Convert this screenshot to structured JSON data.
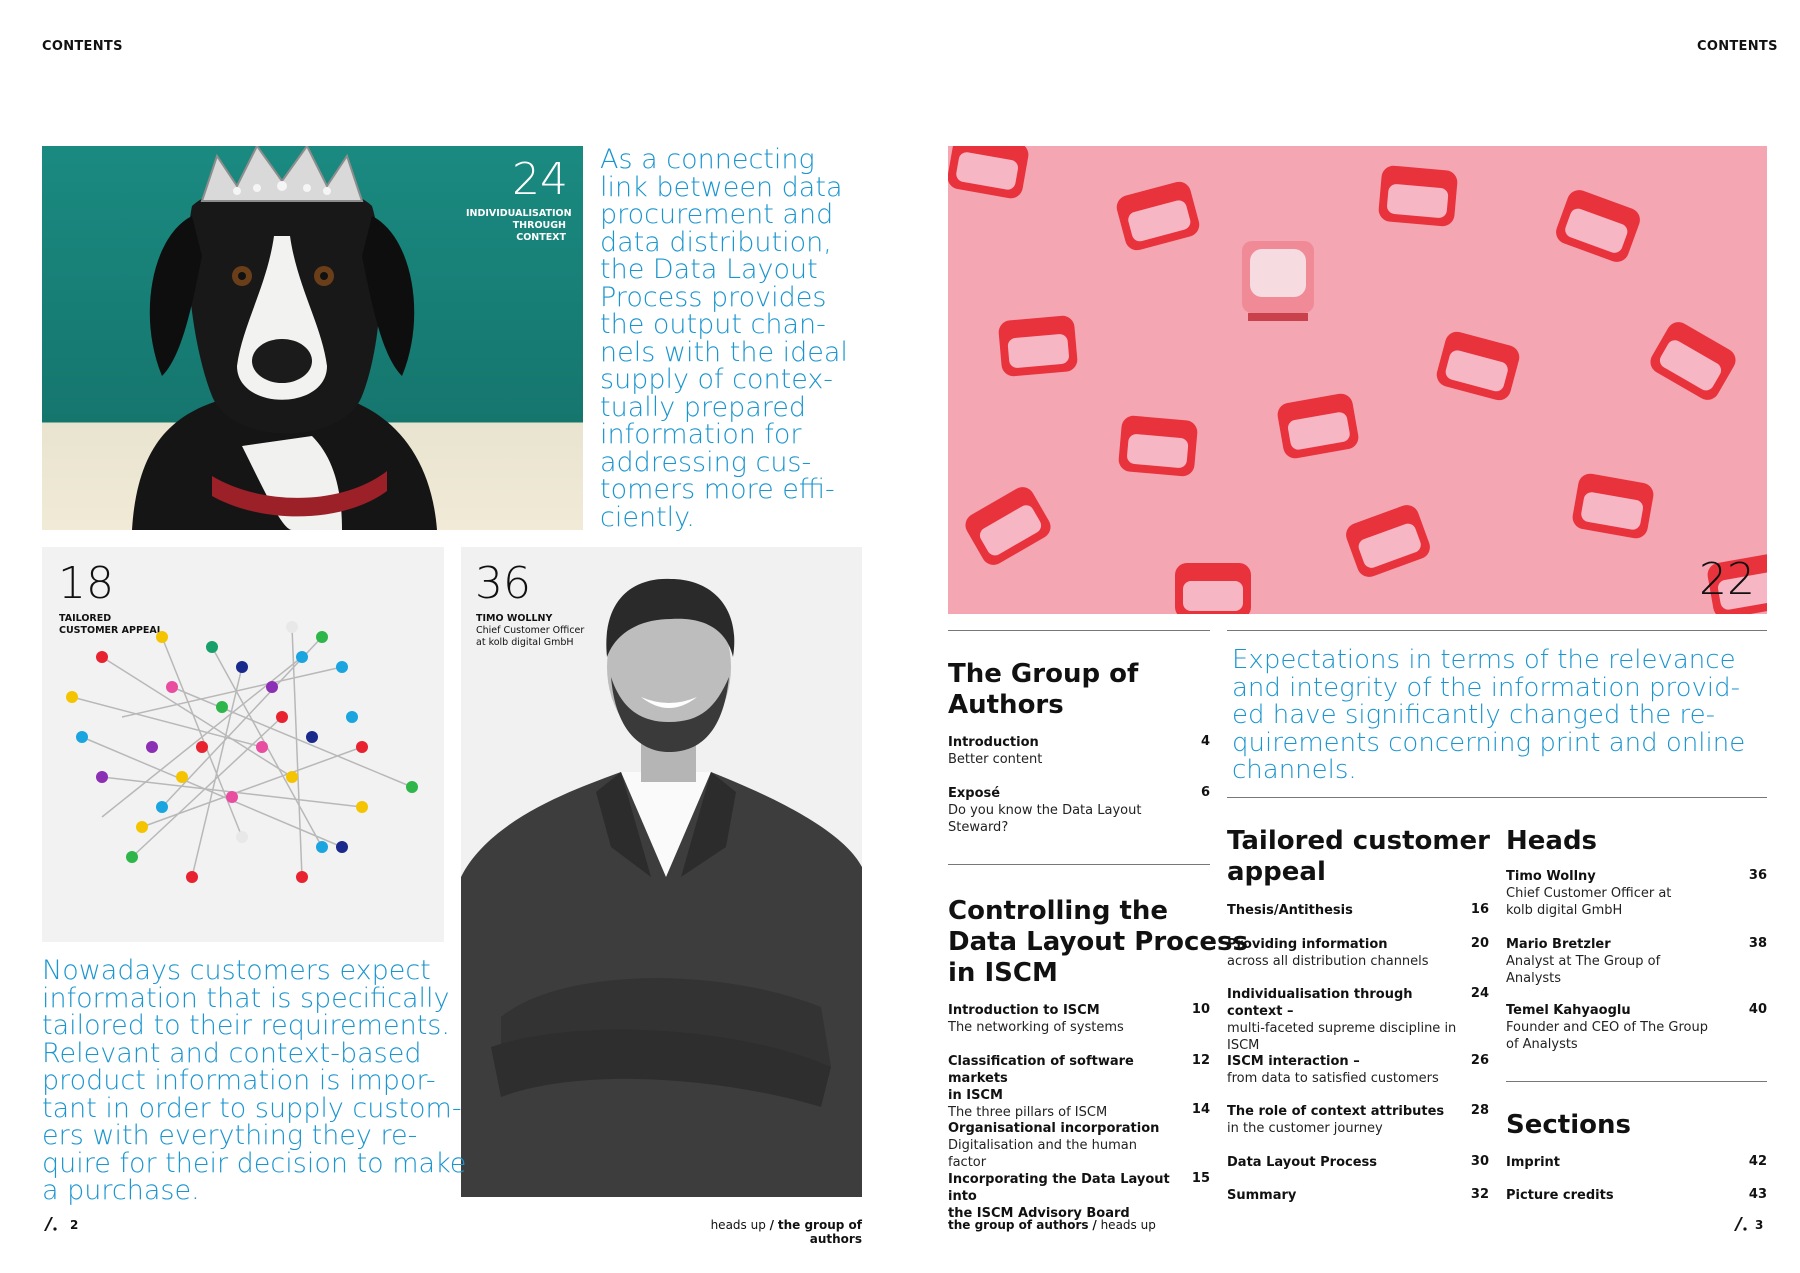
{
  "left_page": {
    "header": "CONTENTS",
    "feature_top": {
      "number": "24",
      "caption": [
        "INDIVIDUALISATION",
        "THROUGH CONTEXT"
      ]
    },
    "quote_top": [
      "As a connecting",
      "link between data",
      "procurement and",
      "data distribution,",
      "the Data Layout",
      "Process provides",
      "the output chan-",
      "nels with the ideal",
      "supply of contex-",
      "tually prepared",
      "information for",
      "addressing cus-",
      "tomers more effi-",
      "ciently."
    ],
    "feature_pins": {
      "number": "18",
      "caption": [
        "TAILORED",
        "CUSTOMER APPEAL"
      ]
    },
    "feature_person": {
      "number": "36",
      "caption_name": "TIMO WOLLNY",
      "caption_lines": [
        "Chief Customer Officer",
        "at kolb digital GmbH"
      ]
    },
    "quote_bottom": [
      "Nowadays customers expect",
      "information that is specifically",
      "tailored to their requirements.",
      "Relevant and context-based",
      "product information is impor-",
      "tant in order to supply custom-",
      "ers with everything they re-",
      "quire for their decision to make",
      "a purchase."
    ],
    "footer": {
      "page_number": "2",
      "publication": "heads up",
      "separator": "/",
      "section": "the group of authors"
    }
  },
  "right_page": {
    "header": "CONTENTS",
    "feature_tv": {
      "number": "22"
    },
    "quote": [
      "Expectations in terms of the relevance",
      "and integrity of the information provid-",
      "ed have significantly changed the re-",
      "quirements concerning print and online",
      "channels."
    ],
    "toc": {
      "group_of_authors": {
        "title": [
          "The Group of",
          "Authors"
        ],
        "entries": [
          {
            "title": "Introduction",
            "subtitle": [
              "Better content"
            ],
            "page": "4"
          },
          {
            "title": "Exposé",
            "subtitle": [
              "Do you know the Data Layout",
              "Steward?"
            ],
            "page": "6"
          }
        ]
      },
      "controlling": {
        "title": [
          "Controlling the",
          "Data Layout Process",
          "in ISCM"
        ],
        "entries": [
          {
            "title": [
              "Introduction to ISCM"
            ],
            "subtitle": [
              "The networking of systems"
            ],
            "page": "10"
          },
          {
            "title": [
              "Classification of software markets",
              "in ISCM"
            ],
            "subtitle": [
              "The three pillars of ISCM"
            ],
            "page": "12"
          },
          {
            "title": [
              "Organisational incorporation"
            ],
            "subtitle": [
              "Digitalisation and the human factor"
            ],
            "page": "14"
          },
          {
            "title": [
              "Incorporating the Data Layout into",
              "the ISCM Advisory Board"
            ],
            "subtitle": [],
            "page": "15"
          }
        ]
      },
      "tailored": {
        "title": [
          "Tailored customer",
          "appeal"
        ],
        "entries": [
          {
            "title": "Thesis/Antithesis",
            "subtitle": [],
            "page": "16"
          },
          {
            "title": "Providing information",
            "subtitle": [
              "across all distribution channels"
            ],
            "page": "20"
          },
          {
            "title": "Individualisation through context –",
            "subtitle": [
              "multi-faceted supreme discipline in",
              "ISCM"
            ],
            "page": "24"
          },
          {
            "title": "ISCM interaction –",
            "subtitle": [
              "from data to satisfied customers"
            ],
            "page": "26"
          },
          {
            "title": "The role of context attributes",
            "subtitle": [
              "in the customer journey"
            ],
            "page": "28"
          },
          {
            "title": "Data Layout Process",
            "subtitle": [],
            "page": "30"
          },
          {
            "title": "Summary",
            "subtitle": [],
            "page": "32"
          }
        ]
      },
      "heads": {
        "title": "Heads",
        "entries": [
          {
            "title": "Timo Wollny",
            "subtitle": [
              "Chief Customer Officer at",
              "kolb digital GmbH"
            ],
            "page": "36"
          },
          {
            "title": "Mario Bretzler",
            "subtitle": [
              "Analyst at The Group of",
              "Analysts"
            ],
            "page": "38"
          },
          {
            "title": "Temel Kahyaoglu",
            "subtitle": [
              "Founder and CEO of The Group",
              "of Analysts"
            ],
            "page": "40"
          }
        ]
      },
      "sections": {
        "title": "Sections",
        "entries": [
          {
            "title": "Imprint",
            "page": "42"
          },
          {
            "title": "Picture credits",
            "page": "43"
          }
        ]
      }
    },
    "footer": {
      "section": "the group of authors",
      "separator": "/",
      "publication": "heads up",
      "page_number": "3"
    }
  },
  "colors": {
    "accent_blue": "#1a95cf",
    "teal_bg": "#17847a",
    "pink_bg": "#f4a6b2",
    "tv_red": "#e8323c"
  }
}
